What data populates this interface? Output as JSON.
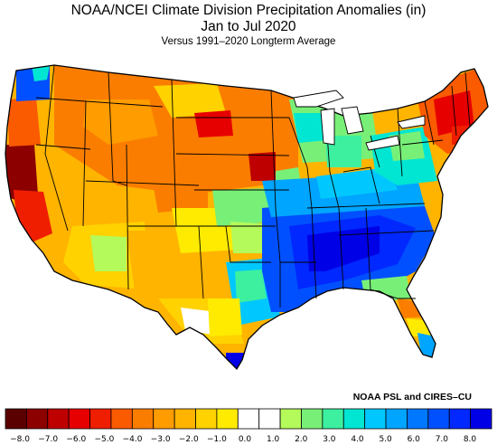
{
  "title": "NOAA/NCEI Climate Division Precipitation Anomalies (in)",
  "period": "Jan to Jul 2020",
  "subtitle": "Versus 1991–2020 Longterm Average",
  "credit": "NOAA PSL and CIRES–CU",
  "legend": {
    "colors": [
      "#5a0000",
      "#8c0000",
      "#be0000",
      "#e60000",
      "#f01e00",
      "#fa5a00",
      "#fa7d00",
      "#ff9c00",
      "#ffb400",
      "#ffd200",
      "#ffeb00",
      "#ffffff",
      "#ffffff",
      "#b4fa5a",
      "#78f078",
      "#3cf0a0",
      "#00e6d2",
      "#00c8ff",
      "#00a5ff",
      "#0078ff",
      "#0050ff",
      "#0028ff",
      "#0000e6"
    ],
    "labels": [
      "−8.0",
      "−7.0",
      "−6.0",
      "−5.0",
      "−4.0",
      "−3.0",
      "−2.0",
      "−1.0",
      "0.0",
      "1.0",
      "2.0",
      "3.0",
      "4.0",
      "5.0",
      "6.0",
      "7.0",
      "8.0"
    ]
  }
}
